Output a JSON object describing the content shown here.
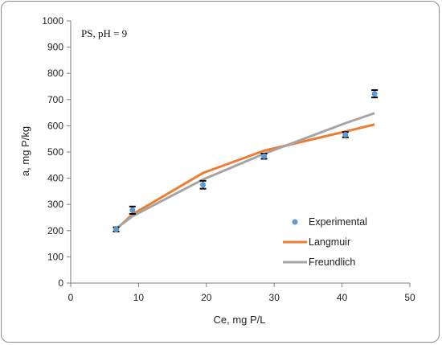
{
  "chart_data": {
    "type": "scatter",
    "annotation": "PS, pH = 9",
    "xlabel": "Ce, mg P/L",
    "ylabel": "a, mg P/kg",
    "xlim": [
      0,
      50
    ],
    "ylim": [
      0,
      1000
    ],
    "xticks": [
      0,
      10,
      20,
      30,
      40,
      50
    ],
    "yticks": [
      0,
      100,
      200,
      300,
      400,
      500,
      600,
      700,
      800,
      900,
      1000
    ],
    "grid": false,
    "legend_position": "bottom-right",
    "series": [
      {
        "name": "Experimental",
        "kind": "markers",
        "color": "#5b9bd5",
        "x": [
          6.7,
          9.1,
          19.5,
          28.5,
          40.5,
          44.8
        ],
        "y": [
          205,
          278,
          375,
          484,
          566,
          722
        ],
        "error": [
          8,
          14,
          15,
          10,
          10,
          14
        ]
      },
      {
        "name": "Langmuir",
        "kind": "line",
        "color": "#ed7d31",
        "x": [
          6.7,
          9.1,
          19.5,
          28.5,
          40.5,
          44.8
        ],
        "y": [
          205,
          262,
          420,
          505,
          578,
          605
        ]
      },
      {
        "name": "Freundlich",
        "kind": "line",
        "color": "#a5a5a5",
        "x": [
          6.7,
          9.1,
          19.5,
          28.5,
          40.5,
          44.8
        ],
        "y": [
          208,
          255,
          395,
          493,
          610,
          648
        ]
      }
    ]
  }
}
